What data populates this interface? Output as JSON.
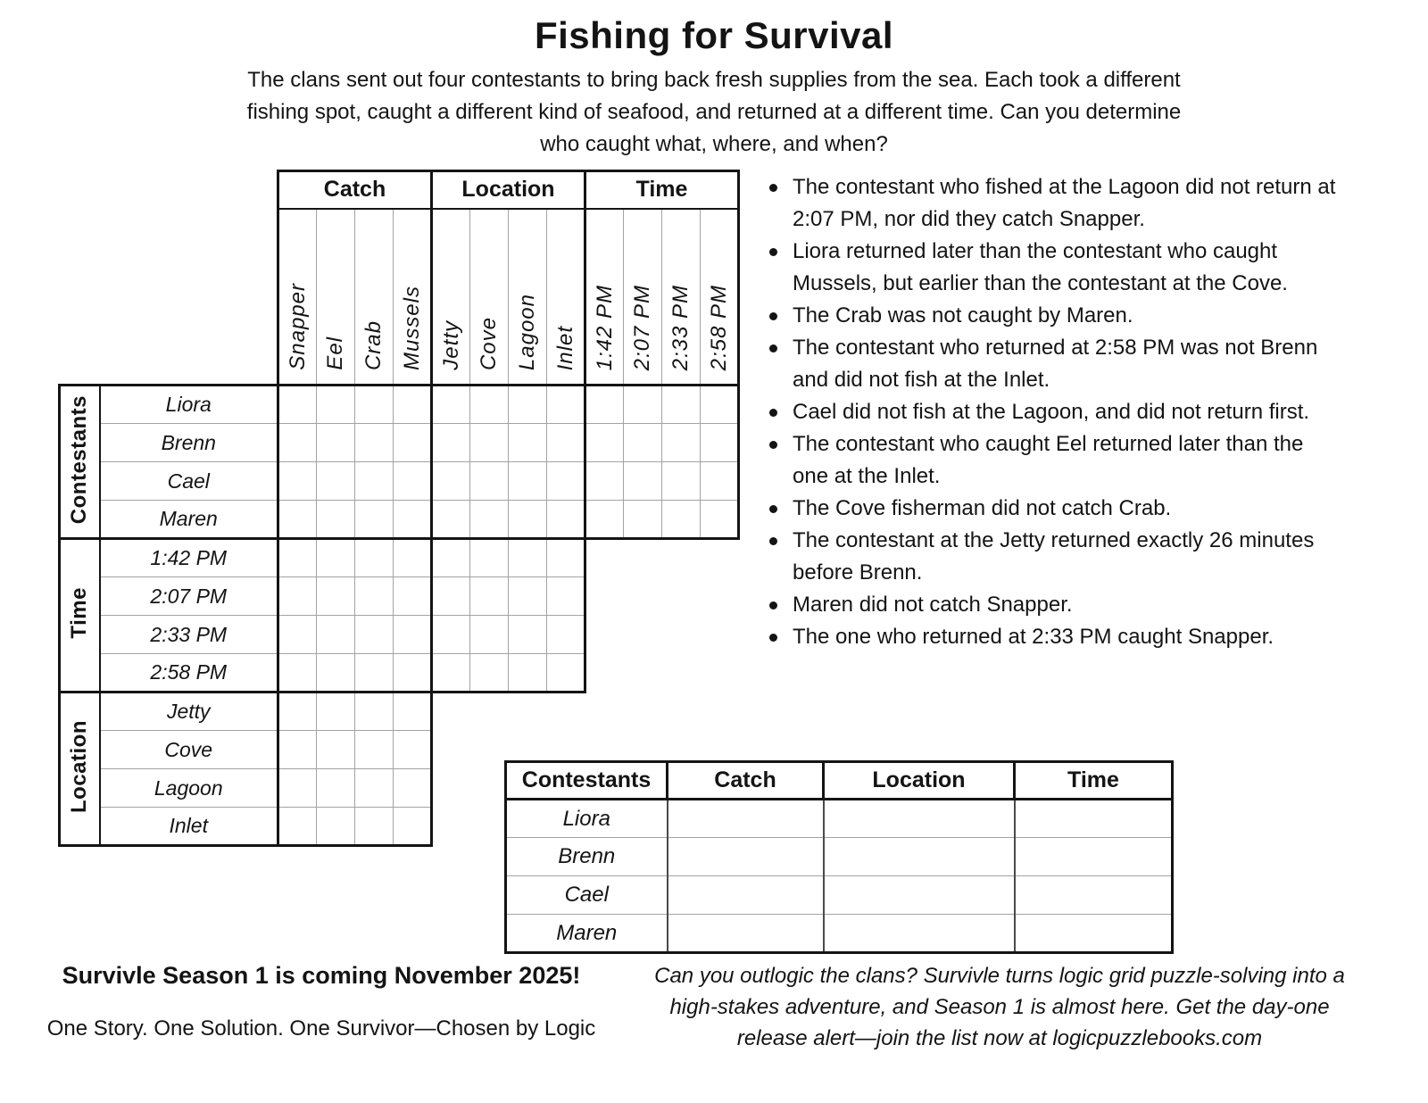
{
  "page": {
    "title": "Fishing for Survival",
    "intro": "The clans sent out four contestants to bring back fresh supplies from the sea. Each took a different\nfishing spot, caught a different kind of seafood, and returned at a different time. Can you determine\nwho caught what, where, and when?"
  },
  "puzzle_grid": {
    "col_groups": [
      {
        "label": "Catch",
        "items": [
          "Snapper",
          "Eel",
          "Crab",
          "Mussels"
        ]
      },
      {
        "label": "Location",
        "items": [
          "Jetty",
          "Cove",
          "Lagoon",
          "Inlet"
        ]
      },
      {
        "label": "Time",
        "items": [
          "1:42 PM",
          "2:07 PM",
          "2:33 PM",
          "2:58 PM"
        ]
      }
    ],
    "row_groups": [
      {
        "label": "Contestants",
        "items": [
          "Liora",
          "Brenn",
          "Cael",
          "Maren"
        ]
      },
      {
        "label": "Time",
        "items": [
          "1:42 PM",
          "2:07 PM",
          "2:33 PM",
          "2:58 PM"
        ]
      },
      {
        "label": "Location",
        "items": [
          "Jetty",
          "Cove",
          "Lagoon",
          "Inlet"
        ]
      }
    ]
  },
  "clues": [
    "The contestant who fished at the Lagoon did not return at 2:07 PM, nor did they catch Snapper.",
    "Liora returned later than the contestant who caught Mussels, but earlier than the contestant at the Cove.",
    "The Crab was not caught by Maren.",
    "The contestant who returned at 2:58 PM was not Brenn and did not fish at the Inlet.",
    "Cael did not fish at the Lagoon, and did not return first.",
    "The contestant who caught Eel returned later than the one at the Inlet.",
    "The Cove fisherman did not catch Crab.",
    "The contestant at the Jetty returned exactly 26 minutes before Brenn.",
    "Maren did not catch Snapper.",
    "The one who returned at 2:33 PM caught Snapper."
  ],
  "answer_table": {
    "headers": [
      "Contestants",
      "Catch",
      "Location",
      "Time"
    ],
    "row_labels": [
      "Liora",
      "Brenn",
      "Cael",
      "Maren"
    ]
  },
  "footer": {
    "left_title": "Survivle Season 1 is coming November 2025!",
    "left_tagline": "One Story. One Solution. One Survivor—Chosen by Logic",
    "right_promo": "Can you outlogic the clans? Survivle turns logic grid puzzle-solving into a\nhigh-stakes adventure, and Season 1 is almost here. Get the day-one\nrelease alert—join the list now at logicpuzzlebooks.com"
  },
  "colors": {
    "ink": "#141414",
    "thin_line": "#a3a3a3",
    "background": "#ffffff"
  }
}
